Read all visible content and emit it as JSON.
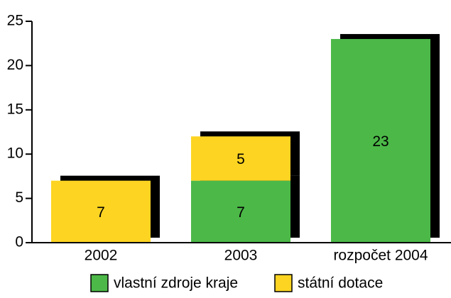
{
  "chart_data": {
    "type": "stacked_bar",
    "categories": [
      "2002",
      "2003",
      "rozpočet 2004"
    ],
    "series": [
      {
        "name": "vlastní zdroje kraje",
        "color": "#4cb848",
        "values": [
          null,
          7,
          23
        ]
      },
      {
        "name": "státní dotace",
        "color": "#fdd422",
        "values": [
          7,
          5,
          null
        ]
      }
    ],
    "ylim": [
      0,
      25
    ],
    "yticks": [
      0,
      5,
      10,
      15,
      20,
      25
    ]
  }
}
